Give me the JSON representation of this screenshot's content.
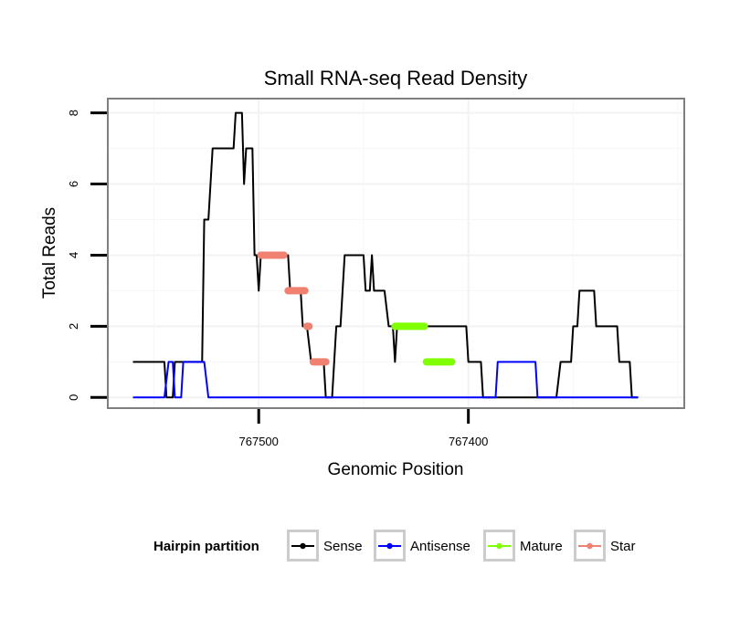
{
  "chart_data": {
    "type": "line",
    "title": "Small RNA-seq Read Density",
    "xlabel": "Genomic Position",
    "ylabel": "Total Reads",
    "x_reversed": true,
    "xlim": [
      767572,
      767297
    ],
    "ylim": [
      -0.3,
      8.4
    ],
    "x_ticks": [
      767500,
      767400
    ],
    "x_tick_labels": [
      "767500",
      "767400"
    ],
    "y_ticks": [
      0,
      2,
      4,
      6,
      8
    ],
    "y_tick_labels": [
      "0",
      "2",
      "4",
      "6",
      "8"
    ],
    "grid": true,
    "legend": {
      "title": "Hairpin partition",
      "position": "bottom",
      "entries": [
        {
          "label": "Sense",
          "color": "#000000"
        },
        {
          "label": "Antisense",
          "color": "#0000ff"
        },
        {
          "label": "Mature",
          "color": "#7fff00"
        },
        {
          "label": "Star",
          "color": "#f08070"
        }
      ]
    },
    "series": [
      {
        "name": "Sense",
        "color": "#000000",
        "style": "line",
        "points": [
          [
            767560,
            1
          ],
          [
            767545,
            1
          ],
          [
            767544,
            0
          ],
          [
            767541,
            0
          ],
          [
            767540,
            1
          ],
          [
            767527,
            1
          ],
          [
            767526,
            5
          ],
          [
            767524,
            5
          ],
          [
            767522,
            7
          ],
          [
            767512,
            7
          ],
          [
            767511,
            8
          ],
          [
            767508,
            8
          ],
          [
            767507,
            6
          ],
          [
            767506,
            7
          ],
          [
            767503,
            7
          ],
          [
            767502,
            4
          ],
          [
            767501,
            4
          ],
          [
            767500,
            3
          ],
          [
            767499,
            4
          ],
          [
            767486,
            4
          ],
          [
            767485,
            3
          ],
          [
            767480,
            3
          ],
          [
            767479,
            2
          ],
          [
            767477,
            2
          ],
          [
            767475,
            1
          ],
          [
            767469,
            1
          ],
          [
            767468,
            0
          ],
          [
            767465,
            0
          ],
          [
            767464,
            1
          ],
          [
            767463,
            2
          ],
          [
            767461,
            2
          ],
          [
            767459,
            4
          ],
          [
            767450,
            4
          ],
          [
            767449,
            3
          ],
          [
            767447,
            3
          ],
          [
            767446,
            4
          ],
          [
            767445,
            3
          ],
          [
            767440,
            3
          ],
          [
            767438,
            2
          ],
          [
            767436,
            2
          ],
          [
            767435,
            1
          ],
          [
            767434,
            2
          ],
          [
            767401,
            2
          ],
          [
            767400,
            1
          ],
          [
            767394,
            1
          ],
          [
            767393,
            0
          ],
          [
            767358,
            0
          ],
          [
            767356,
            1
          ],
          [
            767351,
            1
          ],
          [
            767350,
            2
          ],
          [
            767348,
            2
          ],
          [
            767347,
            3
          ],
          [
            767340,
            3
          ],
          [
            767339,
            2
          ],
          [
            767329,
            2
          ],
          [
            767328,
            1
          ],
          [
            767323,
            1
          ],
          [
            767322,
            0
          ],
          [
            767319,
            0
          ]
        ]
      },
      {
        "name": "Antisense",
        "color": "#0000ff",
        "style": "line",
        "points": [
          [
            767560,
            0
          ],
          [
            767545,
            0
          ],
          [
            767543,
            1
          ],
          [
            767541,
            1
          ],
          [
            767540,
            0
          ],
          [
            767537,
            0
          ],
          [
            767536,
            1
          ],
          [
            767526,
            1
          ],
          [
            767524,
            0
          ],
          [
            767387,
            0
          ],
          [
            767386,
            1
          ],
          [
            767368,
            1
          ],
          [
            767367,
            0
          ],
          [
            767319,
            0
          ]
        ]
      },
      {
        "name": "Mature",
        "color": "#7fff00",
        "style": "dots",
        "segments": [
          {
            "x_start": 767435,
            "x_end": 767421,
            "y": 2
          },
          {
            "x_start": 767420,
            "x_end": 767408,
            "y": 1
          }
        ]
      },
      {
        "name": "Star",
        "color": "#f08070",
        "style": "dots",
        "segments": [
          {
            "x_start": 767499,
            "x_end": 767488,
            "y": 4
          },
          {
            "x_start": 767486,
            "x_end": 767478,
            "y": 3
          },
          {
            "x_start": 767477,
            "x_end": 767476,
            "y": 2
          },
          {
            "x_start": 767474,
            "x_end": 767468,
            "y": 1
          }
        ]
      }
    ]
  }
}
